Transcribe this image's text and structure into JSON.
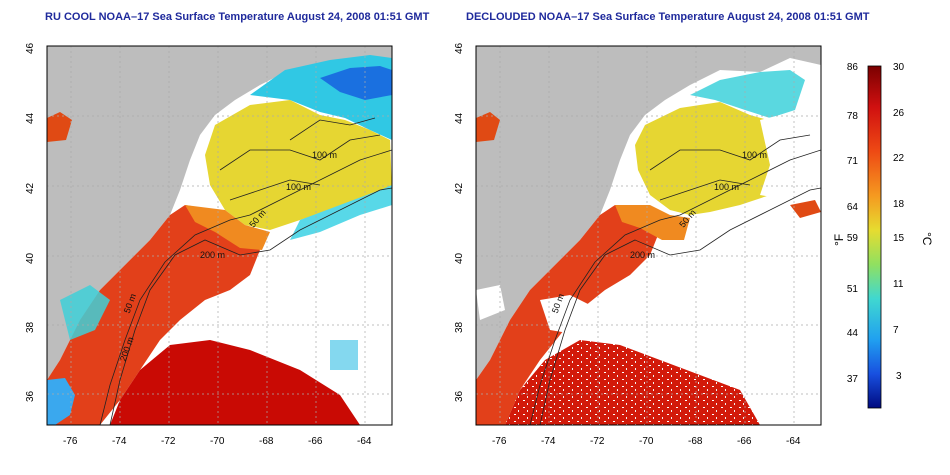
{
  "left_map": {
    "title": "RU COOL NOAA–17 Sea Surface Temperature August 24, 2008 01:51 GMT",
    "contour_labels": [
      "100 m",
      "100 m",
      "50 m",
      "200 m",
      "50 m",
      "200 m"
    ]
  },
  "right_map": {
    "title": "DECLOUDED NOAA–17 Sea Surface Temperature August 24, 2008 01:51 GMT",
    "contour_labels": [
      "100 m",
      "100 m",
      "50 m",
      "200 m",
      "50 m"
    ]
  },
  "axes": {
    "lon_ticks": [
      "-76",
      "-74",
      "-72",
      "-70",
      "-68",
      "-66",
      "-64"
    ],
    "lat_ticks": [
      "46",
      "44",
      "42",
      "40",
      "38",
      "36"
    ]
  },
  "colorbar": {
    "f_unit": "°F",
    "c_unit": "°C",
    "f_ticks": [
      "86",
      "78",
      "71",
      "64",
      "59",
      "51",
      "44",
      "37"
    ],
    "c_ticks": [
      "30",
      "26",
      "22",
      "18",
      "15",
      "11",
      "7",
      "3"
    ]
  },
  "colors": {
    "land": "#bdbdbd",
    "warm": "#d42010",
    "hot": "#c80000",
    "mid_orange": "#ee6a18",
    "yellow": "#e8d830",
    "yellow_green": "#c8e040",
    "cyan": "#3ad0e0",
    "blue": "#1858e0",
    "title_blue": "#1f2a9c"
  }
}
